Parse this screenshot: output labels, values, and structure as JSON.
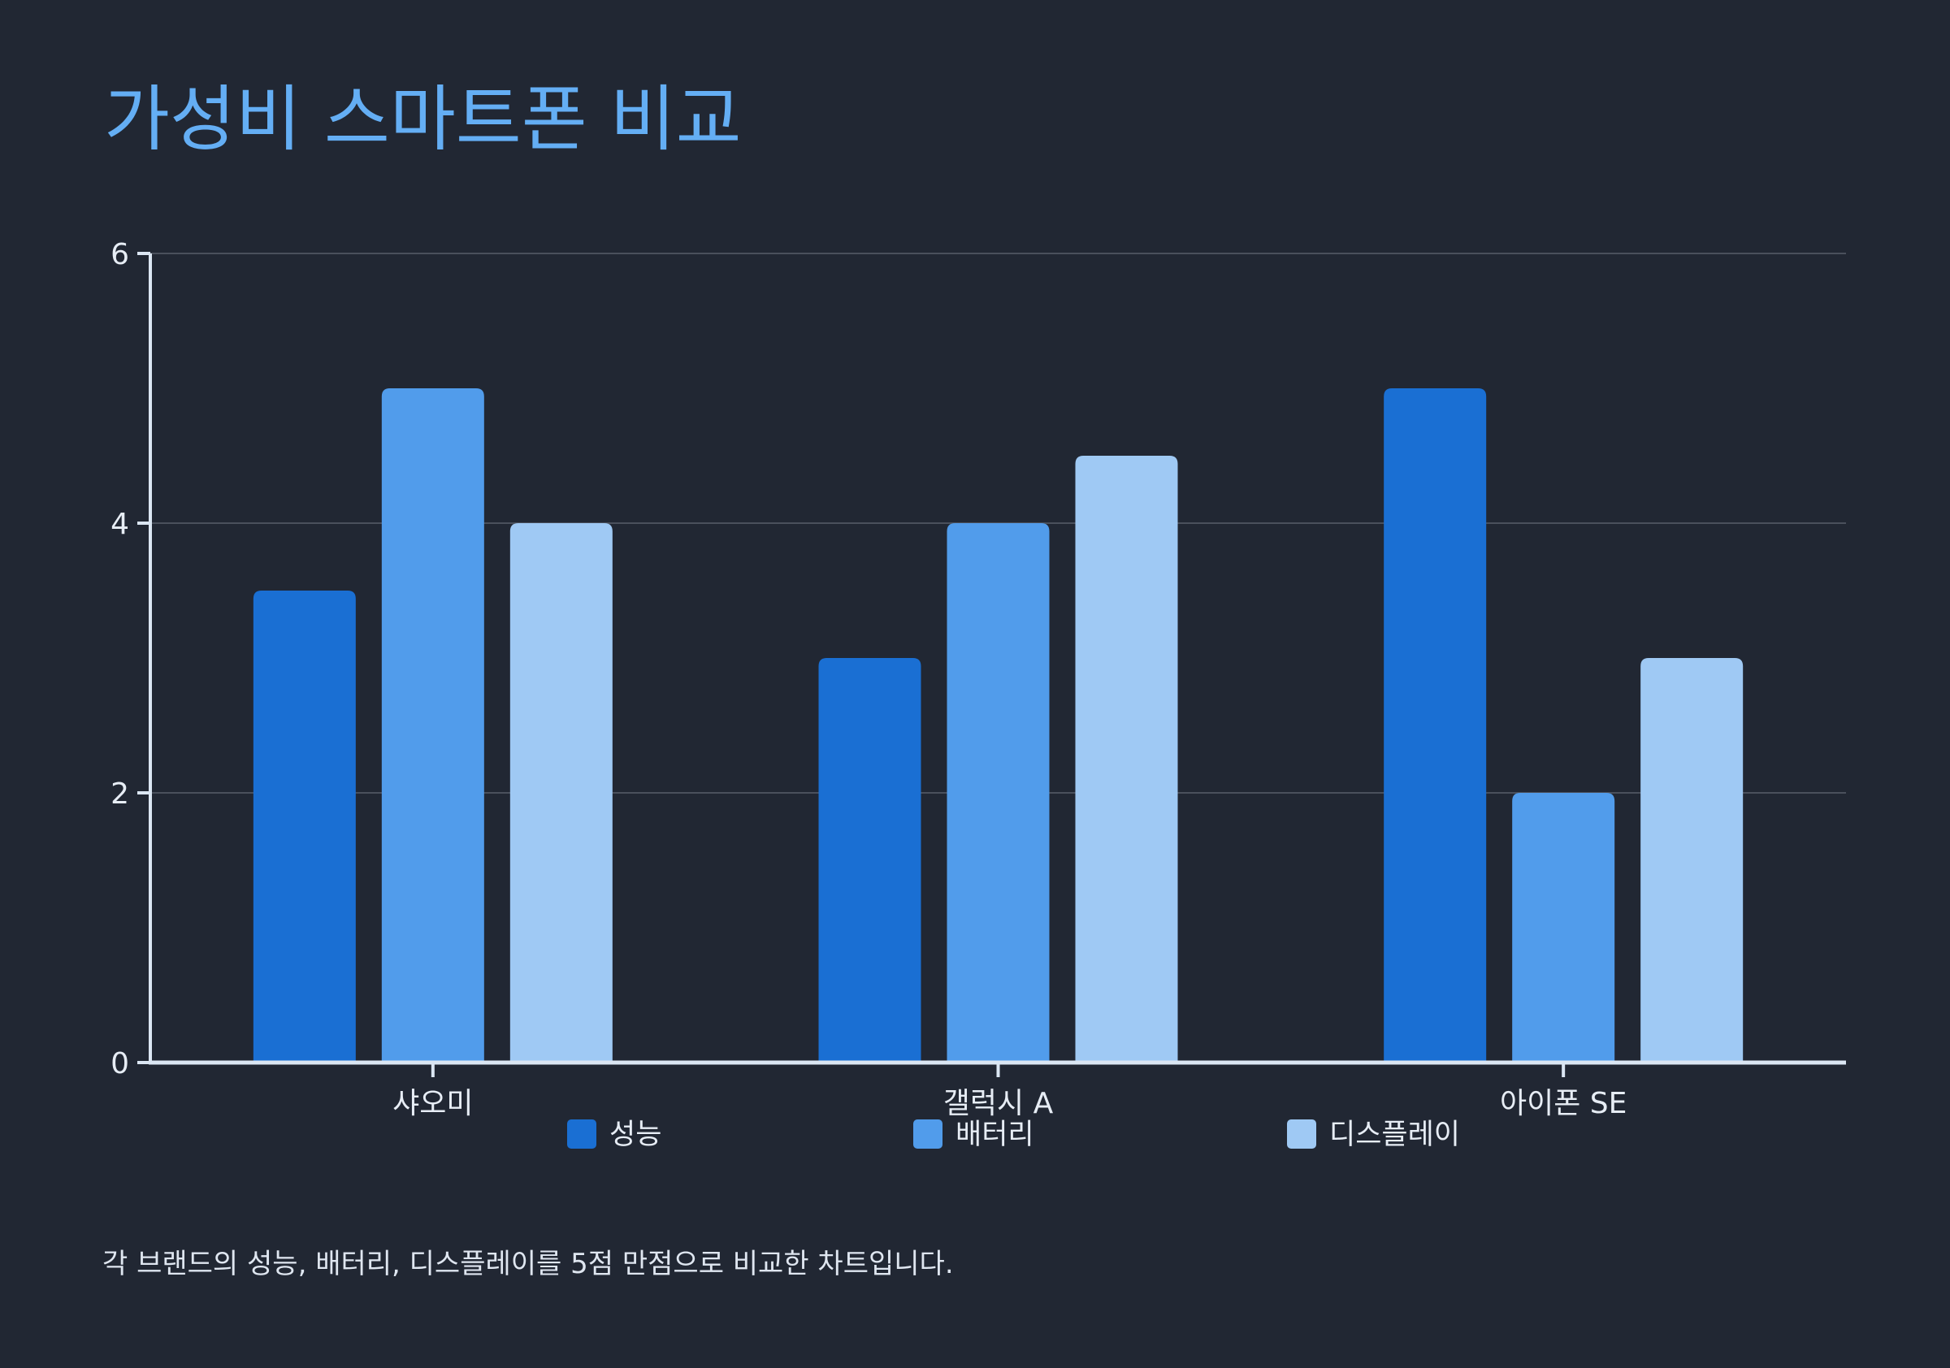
{
  "chart_data": {
    "type": "bar",
    "title": "가성비 스마트폰 비교",
    "categories": [
      "샤오미",
      "갤럭시 A",
      "아이폰 SE"
    ],
    "series": [
      {
        "name": "성능",
        "values": [
          3.5,
          3,
          5
        ],
        "color": "#1a6fd3"
      },
      {
        "name": "배터리",
        "values": [
          5,
          4,
          2
        ],
        "color": "#519ceb"
      },
      {
        "name": "디스플레이",
        "values": [
          4,
          4.5,
          3
        ],
        "color": "#9fc9f4"
      }
    ],
    "ylim": [
      0,
      6
    ],
    "yticks": [
      0,
      2,
      4,
      6
    ],
    "grid": true,
    "legend": "bottom",
    "xlabel": "",
    "ylabel": "",
    "note": "각 브랜드의 성능, 배터리, 디스플레이를 5점 만점으로 비교한 차트입니다."
  },
  "colors": {
    "background": "#212733",
    "axis": "#dbe6f3",
    "grid": "#4a505c",
    "tick_text": "#e7edf5",
    "title": "#64aef4"
  }
}
